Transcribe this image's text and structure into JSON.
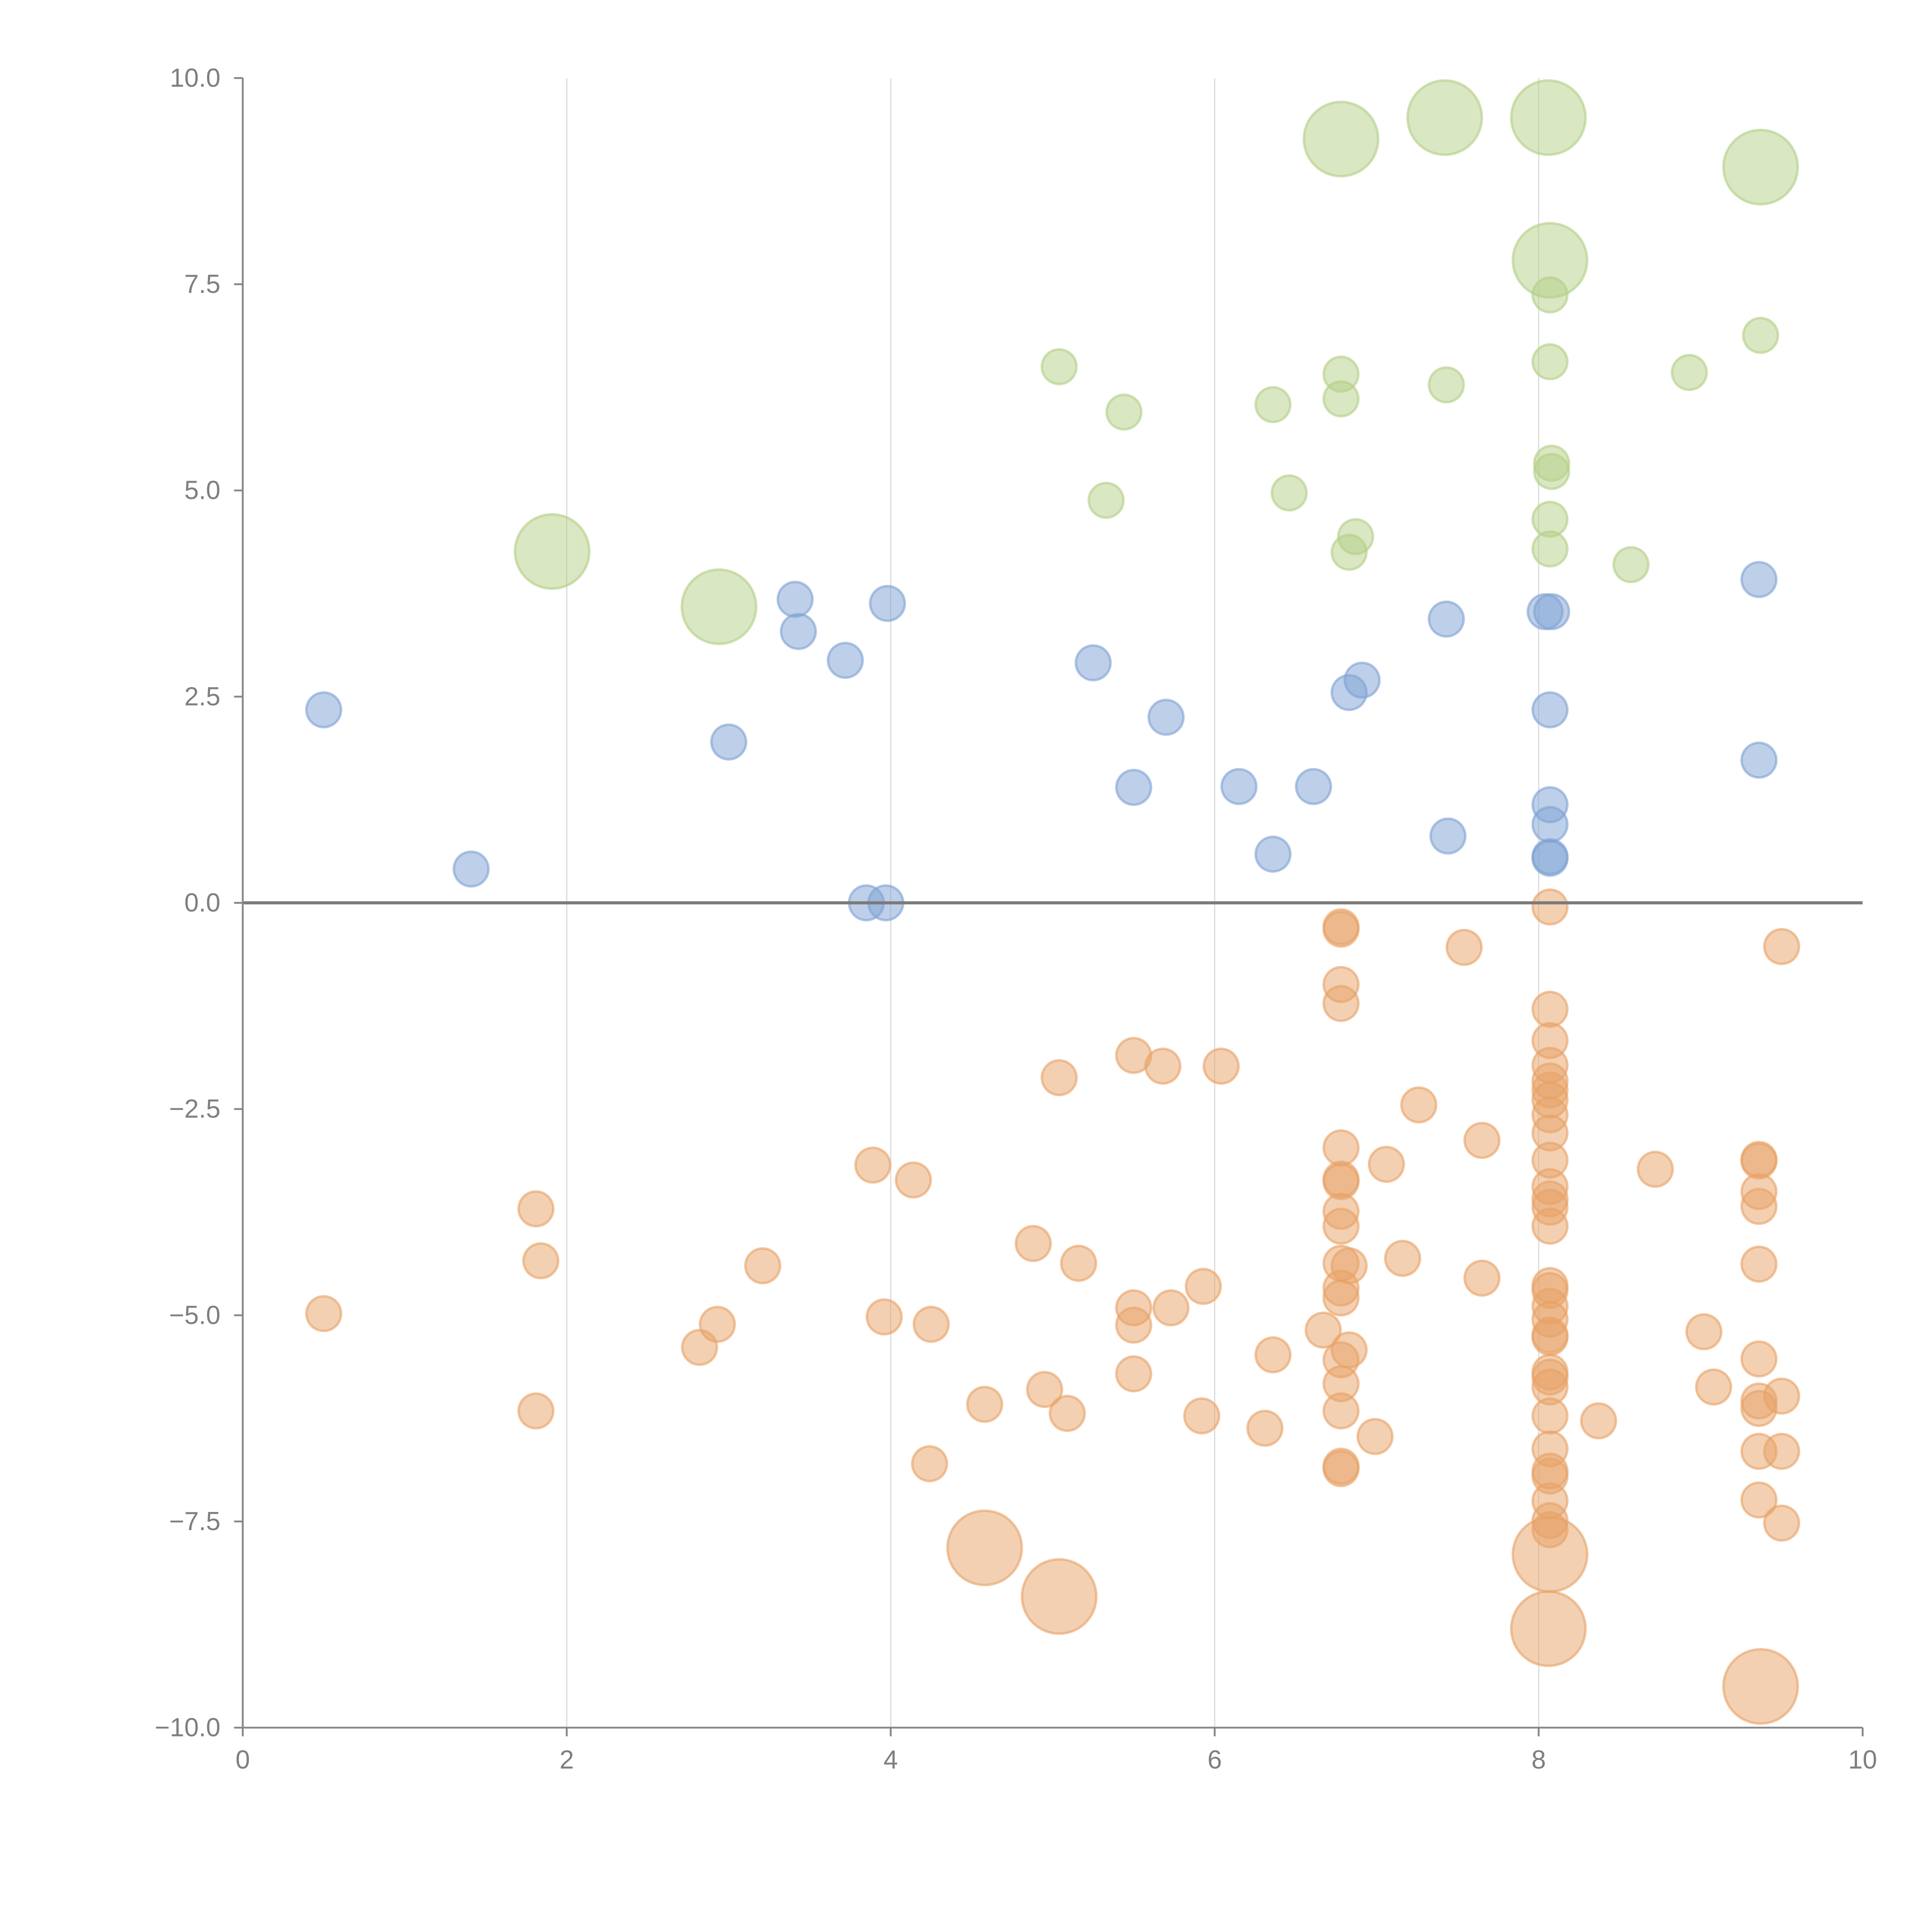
{
  "chart_data": {
    "type": "scatter",
    "title": "",
    "xlabel": "",
    "ylabel": "",
    "xlim": [
      0,
      10
    ],
    "ylim": [
      -10,
      10
    ],
    "grid": "vertical lines at x ticks",
    "x_ticks": [
      "0",
      "2",
      "4",
      "6",
      "8",
      "10"
    ],
    "x_tick_values": [
      0,
      2,
      4,
      6,
      8,
      10
    ],
    "y_ticks": [
      "10.0",
      "7.5",
      "5.0",
      "2.5",
      "0.0",
      "−2.5",
      "−5.0",
      "−7.5",
      "−10.0"
    ],
    "y_tick_values": [
      10,
      7.5,
      5,
      2.5,
      0,
      -2.5,
      -5,
      -7.5,
      -10
    ],
    "zero_line": 0,
    "point_format": "[x, y, size] where size 1 = small bubble, 2 = large bubble",
    "series": [
      {
        "name": "green",
        "color": "#b3cf85",
        "points": [
          [
            6.78,
            9.26,
            2
          ],
          [
            7.42,
            9.52,
            2
          ],
          [
            8.06,
            9.52,
            2
          ],
          [
            9.37,
            8.92,
            2
          ],
          [
            8.07,
            7.79,
            2
          ],
          [
            1.91,
            4.26,
            2
          ],
          [
            2.94,
            3.59,
            2
          ],
          [
            8.07,
            7.37,
            1
          ],
          [
            5.04,
            6.5,
            1
          ],
          [
            5.44,
            5.95,
            1
          ],
          [
            6.36,
            6.04,
            1
          ],
          [
            6.78,
            6.41,
            1
          ],
          [
            6.78,
            6.11,
            1
          ],
          [
            7.43,
            6.28,
            1
          ],
          [
            8.07,
            6.56,
            1
          ],
          [
            9.37,
            6.88,
            1
          ],
          [
            8.93,
            6.43,
            1
          ],
          [
            5.33,
            4.88,
            1
          ],
          [
            6.46,
            4.97,
            1
          ],
          [
            8.08,
            5.33,
            1
          ],
          [
            8.08,
            5.23,
            1
          ],
          [
            8.07,
            4.65,
            1
          ],
          [
            8.07,
            4.29,
            1
          ],
          [
            6.87,
            4.44,
            1
          ],
          [
            6.83,
            4.25,
            1
          ],
          [
            8.57,
            4.1,
            1
          ]
        ]
      },
      {
        "name": "blue",
        "color": "#7ea1d3",
        "points": [
          [
            0.5,
            2.34,
            1
          ],
          [
            1.41,
            0.41,
            1
          ],
          [
            3.0,
            1.95,
            1
          ],
          [
            3.41,
            3.68,
            1
          ],
          [
            3.43,
            3.29,
            1
          ],
          [
            3.72,
            2.94,
            1
          ],
          [
            3.98,
            3.63,
            1
          ],
          [
            3.85,
            0,
            1
          ],
          [
            3.97,
            0,
            1
          ],
          [
            5.25,
            2.91,
            1
          ],
          [
            5.5,
            1.4,
            1
          ],
          [
            5.7,
            2.25,
            1
          ],
          [
            6.15,
            1.41,
            1
          ],
          [
            6.36,
            0.59,
            1
          ],
          [
            6.61,
            1.41,
            1
          ],
          [
            6.83,
            2.55,
            1
          ],
          [
            6.91,
            2.7,
            1
          ],
          [
            7.43,
            3.44,
            1
          ],
          [
            7.44,
            0.81,
            1
          ],
          [
            8.04,
            3.53,
            1
          ],
          [
            8.08,
            3.53,
            1
          ],
          [
            8.07,
            2.34,
            1
          ],
          [
            8.07,
            1.19,
            1
          ],
          [
            8.07,
            0.95,
            1
          ],
          [
            8.07,
            0.56,
            1
          ],
          [
            8.07,
            0.54,
            1
          ],
          [
            9.36,
            3.92,
            1
          ],
          [
            9.36,
            1.73,
            1
          ]
        ]
      },
      {
        "name": "orange",
        "color": "#e8a266",
        "points": [
          [
            4.58,
            -7.82,
            2
          ],
          [
            5.04,
            -8.41,
            2
          ],
          [
            8.07,
            -7.9,
            2
          ],
          [
            8.06,
            -8.8,
            2
          ],
          [
            9.37,
            -9.5,
            2
          ],
          [
            0.5,
            -4.98,
            1
          ],
          [
            1.81,
            -3.71,
            1
          ],
          [
            1.84,
            -4.34,
            1
          ],
          [
            1.81,
            -6.16,
            1
          ],
          [
            2.82,
            -5.39,
            1
          ],
          [
            2.93,
            -5.11,
            1
          ],
          [
            3.21,
            -4.4,
            1
          ],
          [
            3.89,
            -3.18,
            1
          ],
          [
            4.14,
            -3.36,
            1
          ],
          [
            3.96,
            -5.02,
            1
          ],
          [
            4.25,
            -5.11,
            1
          ],
          [
            4.24,
            -6.8,
            1
          ],
          [
            4.58,
            -6.08,
            1
          ],
          [
            4.88,
            -4.13,
            1
          ],
          [
            4.95,
            -5.9,
            1
          ],
          [
            5.04,
            -2.12,
            1
          ],
          [
            5.09,
            -6.19,
            1
          ],
          [
            5.16,
            -4.37,
            1
          ],
          [
            5.5,
            -1.85,
            1
          ],
          [
            5.68,
            -1.98,
            1
          ],
          [
            6.04,
            -1.98,
            1
          ],
          [
            5.5,
            -4.91,
            1
          ],
          [
            5.5,
            -5.12,
            1
          ],
          [
            5.5,
            -5.71,
            1
          ],
          [
            5.73,
            -4.91,
            1
          ],
          [
            5.93,
            -4.65,
            1
          ],
          [
            5.92,
            -6.22,
            1
          ],
          [
            6.31,
            -6.37,
            1
          ],
          [
            6.36,
            -5.48,
            1
          ],
          [
            6.67,
            -5.18,
            1
          ],
          [
            6.78,
            -0.29,
            1
          ],
          [
            6.78,
            -0.32,
            1
          ],
          [
            6.78,
            -0.99,
            1
          ],
          [
            6.78,
            -1.22,
            1
          ],
          [
            6.78,
            -2.97,
            1
          ],
          [
            6.78,
            -3.35,
            1
          ],
          [
            6.78,
            -3.38,
            1
          ],
          [
            6.78,
            -3.74,
            1
          ],
          [
            6.78,
            -3.92,
            1
          ],
          [
            6.78,
            -4.37,
            1
          ],
          [
            6.83,
            -4.4,
            1
          ],
          [
            6.78,
            -4.67,
            1
          ],
          [
            6.78,
            -4.79,
            1
          ],
          [
            6.83,
            -5.42,
            1
          ],
          [
            6.78,
            -5.54,
            1
          ],
          [
            6.78,
            -5.83,
            1
          ],
          [
            6.78,
            -6.16,
            1
          ],
          [
            6.78,
            -6.83,
            1
          ],
          [
            6.78,
            -6.86,
            1
          ],
          [
            6.99,
            -6.47,
            1
          ],
          [
            7.06,
            -3.17,
            1
          ],
          [
            7.16,
            -4.31,
            1
          ],
          [
            7.26,
            -2.45,
            1
          ],
          [
            7.54,
            -0.54,
            1
          ],
          [
            7.65,
            -2.88,
            1
          ],
          [
            7.65,
            -4.55,
            1
          ],
          [
            8.07,
            -0.05,
            1
          ],
          [
            8.07,
            -1.29,
            1
          ],
          [
            8.07,
            -1.67,
            1
          ],
          [
            8.07,
            -1.97,
            1
          ],
          [
            8.07,
            -2.16,
            1
          ],
          [
            8.07,
            -2.27,
            1
          ],
          [
            8.07,
            -2.39,
            1
          ],
          [
            8.07,
            -2.57,
            1
          ],
          [
            8.07,
            -2.79,
            1
          ],
          [
            8.07,
            -3.12,
            1
          ],
          [
            8.07,
            -3.44,
            1
          ],
          [
            8.07,
            -3.59,
            1
          ],
          [
            8.07,
            -3.69,
            1
          ],
          [
            8.07,
            -3.92,
            1
          ],
          [
            8.07,
            -4.64,
            1
          ],
          [
            8.07,
            -4.7,
            1
          ],
          [
            8.07,
            -4.89,
            1
          ],
          [
            8.07,
            -5.05,
            1
          ],
          [
            8.07,
            -5.24,
            1
          ],
          [
            8.07,
            -5.27,
            1
          ],
          [
            8.07,
            -5.69,
            1
          ],
          [
            8.07,
            -5.75,
            1
          ],
          [
            8.07,
            -5.87,
            1
          ],
          [
            8.07,
            -6.22,
            1
          ],
          [
            8.07,
            -6.62,
            1
          ],
          [
            8.07,
            -6.89,
            1
          ],
          [
            8.07,
            -6.95,
            1
          ],
          [
            8.07,
            -7.25,
            1
          ],
          [
            8.07,
            -7.49,
            1
          ],
          [
            8.07,
            -7.6,
            1
          ],
          [
            8.37,
            -6.28,
            1
          ],
          [
            8.72,
            -3.23,
            1
          ],
          [
            9.02,
            -5.2,
            1
          ],
          [
            9.08,
            -5.87,
            1
          ],
          [
            9.36,
            -3.11,
            1
          ],
          [
            9.36,
            -3.13,
            1
          ],
          [
            9.36,
            -3.5,
            1
          ],
          [
            9.36,
            -3.68,
            1
          ],
          [
            9.36,
            -4.38,
            1
          ],
          [
            9.36,
            -5.53,
            1
          ],
          [
            9.36,
            -6.04,
            1
          ],
          [
            9.36,
            -6.13,
            1
          ],
          [
            9.36,
            -6.65,
            1
          ],
          [
            9.36,
            -7.24,
            1
          ],
          [
            9.5,
            -0.53,
            1
          ],
          [
            9.5,
            -5.98,
            1
          ],
          [
            9.5,
            -6.65,
            1
          ],
          [
            9.5,
            -7.52,
            1
          ]
        ]
      }
    ]
  }
}
